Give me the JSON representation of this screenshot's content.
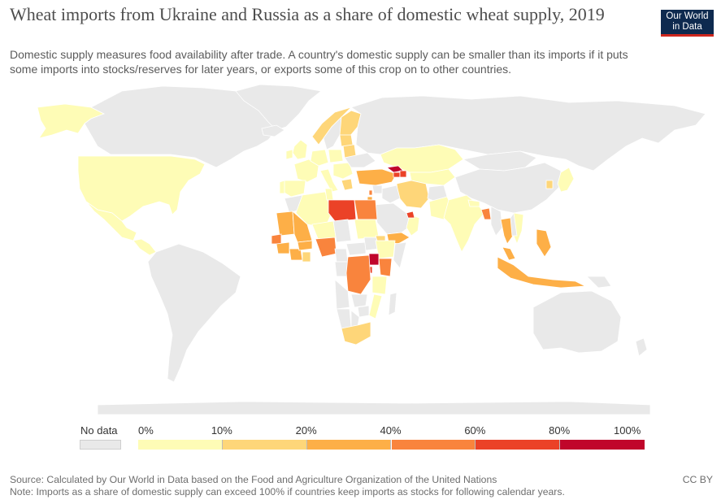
{
  "header": {
    "title": "Wheat imports from Ukraine and Russia as a share of domestic wheat supply, 2019",
    "subtitle": "Domestic supply measures food availability after trade. A country's domestic supply can be smaller than its imports if it puts some imports into stocks/reserves for later years, or exports some of this crop on to other countries."
  },
  "logo": {
    "line1": "Our World",
    "line2": "in Data",
    "bg_color": "#0e2a4f",
    "accent_color": "#ce261e"
  },
  "legend": {
    "no_data_label": "No data",
    "no_data_color": "#e9e9e9",
    "tick_labels": [
      "0%",
      "10%",
      "20%",
      "40%",
      "60%",
      "80%",
      "100%"
    ],
    "bins": [
      {
        "from": 0,
        "to": 10,
        "color": "#fefcb6"
      },
      {
        "from": 10,
        "to": 20,
        "color": "#fed679"
      },
      {
        "from": 20,
        "to": 40,
        "color": "#fdaf47"
      },
      {
        "from": 40,
        "to": 60,
        "color": "#f9843d"
      },
      {
        "from": 60,
        "to": 80,
        "color": "#eb4227"
      },
      {
        "from": 80,
        "to": 100,
        "color": "#c0062b"
      }
    ]
  },
  "map": {
    "no_data_color": "#e9e9e9",
    "border_color": "#ffffff",
    "regions": [
      {
        "name": "Alaska",
        "bin": 0
      },
      {
        "name": "Canada",
        "bin": null
      },
      {
        "name": "Greenland",
        "bin": null
      },
      {
        "name": "United States",
        "bin": 0
      },
      {
        "name": "Mexico",
        "bin": 0
      },
      {
        "name": "Central America",
        "bin": 0
      },
      {
        "name": "South America",
        "bin": null
      },
      {
        "name": "Iceland",
        "bin": null
      },
      {
        "name": "Norway",
        "bin": 1
      },
      {
        "name": "Sweden",
        "bin": null
      },
      {
        "name": "Finland",
        "bin": 1
      },
      {
        "name": "United Kingdom",
        "bin": 0
      },
      {
        "name": "Ireland",
        "bin": 0
      },
      {
        "name": "France",
        "bin": 0
      },
      {
        "name": "Spain",
        "bin": 0
      },
      {
        "name": "Portugal",
        "bin": 0
      },
      {
        "name": "Germany",
        "bin": 0
      },
      {
        "name": "Poland",
        "bin": 0
      },
      {
        "name": "Belarus",
        "bin": 1
      },
      {
        "name": "Baltics",
        "bin": 1
      },
      {
        "name": "Italy",
        "bin": 0
      },
      {
        "name": "Balkans",
        "bin": 0
      },
      {
        "name": "Greece",
        "bin": 1
      },
      {
        "name": "Ukraine",
        "bin": null
      },
      {
        "name": "Russia",
        "bin": null
      },
      {
        "name": "Kazakhstan",
        "bin": 0
      },
      {
        "name": "Turkey",
        "bin": 2
      },
      {
        "name": "Georgia",
        "bin": 5
      },
      {
        "name": "Armenia",
        "bin": 4
      },
      {
        "name": "Azerbaijan",
        "bin": 4
      },
      {
        "name": "Central Asia",
        "bin": 0
      },
      {
        "name": "Mongolia",
        "bin": null
      },
      {
        "name": "China",
        "bin": null
      },
      {
        "name": "Iran",
        "bin": 1
      },
      {
        "name": "Iraq",
        "bin": null
      },
      {
        "name": "Syria",
        "bin": null
      },
      {
        "name": "Lebanon",
        "bin": 3
      },
      {
        "name": "Israel",
        "bin": 2
      },
      {
        "name": "Saudi Arabia",
        "bin": null
      },
      {
        "name": "Yemen",
        "bin": 2
      },
      {
        "name": "Oman",
        "bin": 0
      },
      {
        "name": "UAE",
        "bin": 4
      },
      {
        "name": "Afghanistan",
        "bin": null
      },
      {
        "name": "Pakistan",
        "bin": 0
      },
      {
        "name": "India",
        "bin": 0
      },
      {
        "name": "Nepal",
        "bin": 0
      },
      {
        "name": "Bangladesh",
        "bin": 3
      },
      {
        "name": "Myanmar",
        "bin": null
      },
      {
        "name": "Thailand",
        "bin": 2
      },
      {
        "name": "Vietnam",
        "bin": 0
      },
      {
        "name": "Laos Cambodia",
        "bin": null
      },
      {
        "name": "Malaysia",
        "bin": 2
      },
      {
        "name": "Philippines",
        "bin": 2
      },
      {
        "name": "Indonesia",
        "bin": 2
      },
      {
        "name": "Papua New Guinea",
        "bin": null
      },
      {
        "name": "Japan",
        "bin": 0
      },
      {
        "name": "South Korea",
        "bin": 1
      },
      {
        "name": "Australia",
        "bin": null
      },
      {
        "name": "New Zealand",
        "bin": null
      },
      {
        "name": "Morocco",
        "bin": null
      },
      {
        "name": "Algeria",
        "bin": 0
      },
      {
        "name": "Tunisia",
        "bin": 0
      },
      {
        "name": "Libya",
        "bin": 4
      },
      {
        "name": "Egypt",
        "bin": 3
      },
      {
        "name": "Mauritania",
        "bin": 2
      },
      {
        "name": "Mali",
        "bin": 2
      },
      {
        "name": "Niger",
        "bin": 0
      },
      {
        "name": "Chad",
        "bin": null
      },
      {
        "name": "Sudan",
        "bin": 0
      },
      {
        "name": "Senegal",
        "bin": 3
      },
      {
        "name": "Guinea",
        "bin": 2
      },
      {
        "name": "Ivory Coast",
        "bin": 2
      },
      {
        "name": "Burkina Faso",
        "bin": 2
      },
      {
        "name": "Ghana",
        "bin": 1
      },
      {
        "name": "Nigeria",
        "bin": 3
      },
      {
        "name": "Cameroon",
        "bin": null
      },
      {
        "name": "Central African Republic",
        "bin": null
      },
      {
        "name": "South Sudan",
        "bin": null
      },
      {
        "name": "Ethiopia",
        "bin": 0
      },
      {
        "name": "Eritrea",
        "bin": 1
      },
      {
        "name": "Somalia",
        "bin": null
      },
      {
        "name": "Kenya",
        "bin": 3
      },
      {
        "name": "Uganda",
        "bin": 5
      },
      {
        "name": "Rwanda Burundi",
        "bin": 4
      },
      {
        "name": "Gabon Congo",
        "bin": null
      },
      {
        "name": "DR Congo",
        "bin": 3
      },
      {
        "name": "Tanzania",
        "bin": 0
      },
      {
        "name": "Angola",
        "bin": null
      },
      {
        "name": "Zambia",
        "bin": null
      },
      {
        "name": "Mozambique",
        "bin": 0
      },
      {
        "name": "Zimbabwe",
        "bin": null
      },
      {
        "name": "Namibia",
        "bin": null
      },
      {
        "name": "Botswana",
        "bin": null
      },
      {
        "name": "South Africa",
        "bin": 1
      },
      {
        "name": "Madagascar",
        "bin": null
      },
      {
        "name": "Antarctica",
        "bin": null
      }
    ]
  },
  "footer": {
    "source": "Source: Calculated by Our World in Data based on the FAO of the United Nations",
    "source_full": "Source: Calculated by Our World in Data based on the Food and Agriculture Organization of the United Nations",
    "note": "Note: Imports as a share of domestic supply can exceed 100% if countries keep imports as stocks for following calendar years.",
    "license": "CC BY"
  }
}
